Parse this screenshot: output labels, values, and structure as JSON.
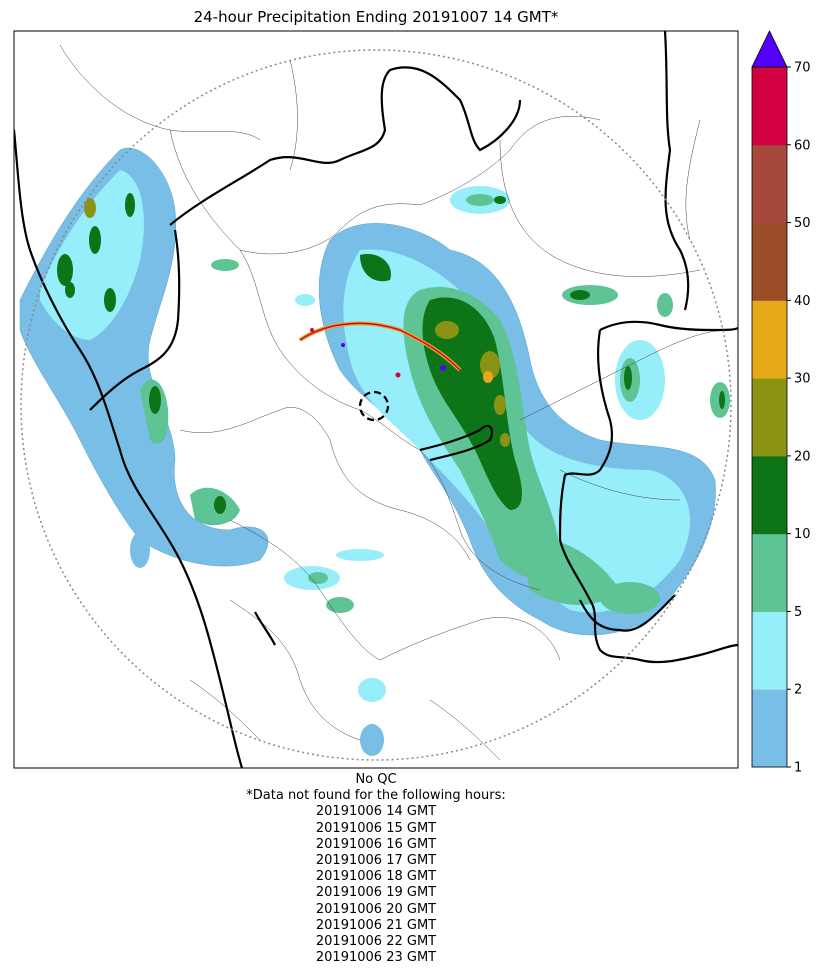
{
  "title": "24-hour Precipitation Ending 20191007 14 GMT*",
  "qc_note": "No QC",
  "missing_note": "*Data not found for the following hours:",
  "missing_hours": [
    "20191006 14 GMT",
    "20191006 15 GMT",
    "20191006 16 GMT",
    "20191006 17 GMT",
    "20191006 18 GMT",
    "20191006 19 GMT",
    "20191006 20 GMT",
    "20191006 21 GMT",
    "20191006 22 GMT",
    "20191006 23 GMT"
  ],
  "colorbar": {
    "levels": [
      {
        "label": "1",
        "color": "#78bee6"
      },
      {
        "label": "2",
        "color": "#96eefa"
      },
      {
        "label": "5",
        "color": "#5ec495"
      },
      {
        "label": "10",
        "color": "#0d7518"
      },
      {
        "label": "20",
        "color": "#8a9314"
      },
      {
        "label": "30",
        "color": "#e6a91a"
      },
      {
        "label": "40",
        "color": "#9a4d26"
      },
      {
        "label": "50",
        "color": "#a6483c"
      },
      {
        "label": "60",
        "color": "#d30042"
      },
      {
        "label": "70",
        "color": ""
      }
    ],
    "over_color": "#5500ff"
  },
  "colors": {
    "light_blue": "#78bee6",
    "cyan": "#96eefa",
    "light_green": "#5ec495",
    "dark_green": "#0d7518",
    "olive": "#8a9314",
    "orange": "#e6a91a",
    "purple": "#5500ff",
    "red": "#d30042"
  }
}
